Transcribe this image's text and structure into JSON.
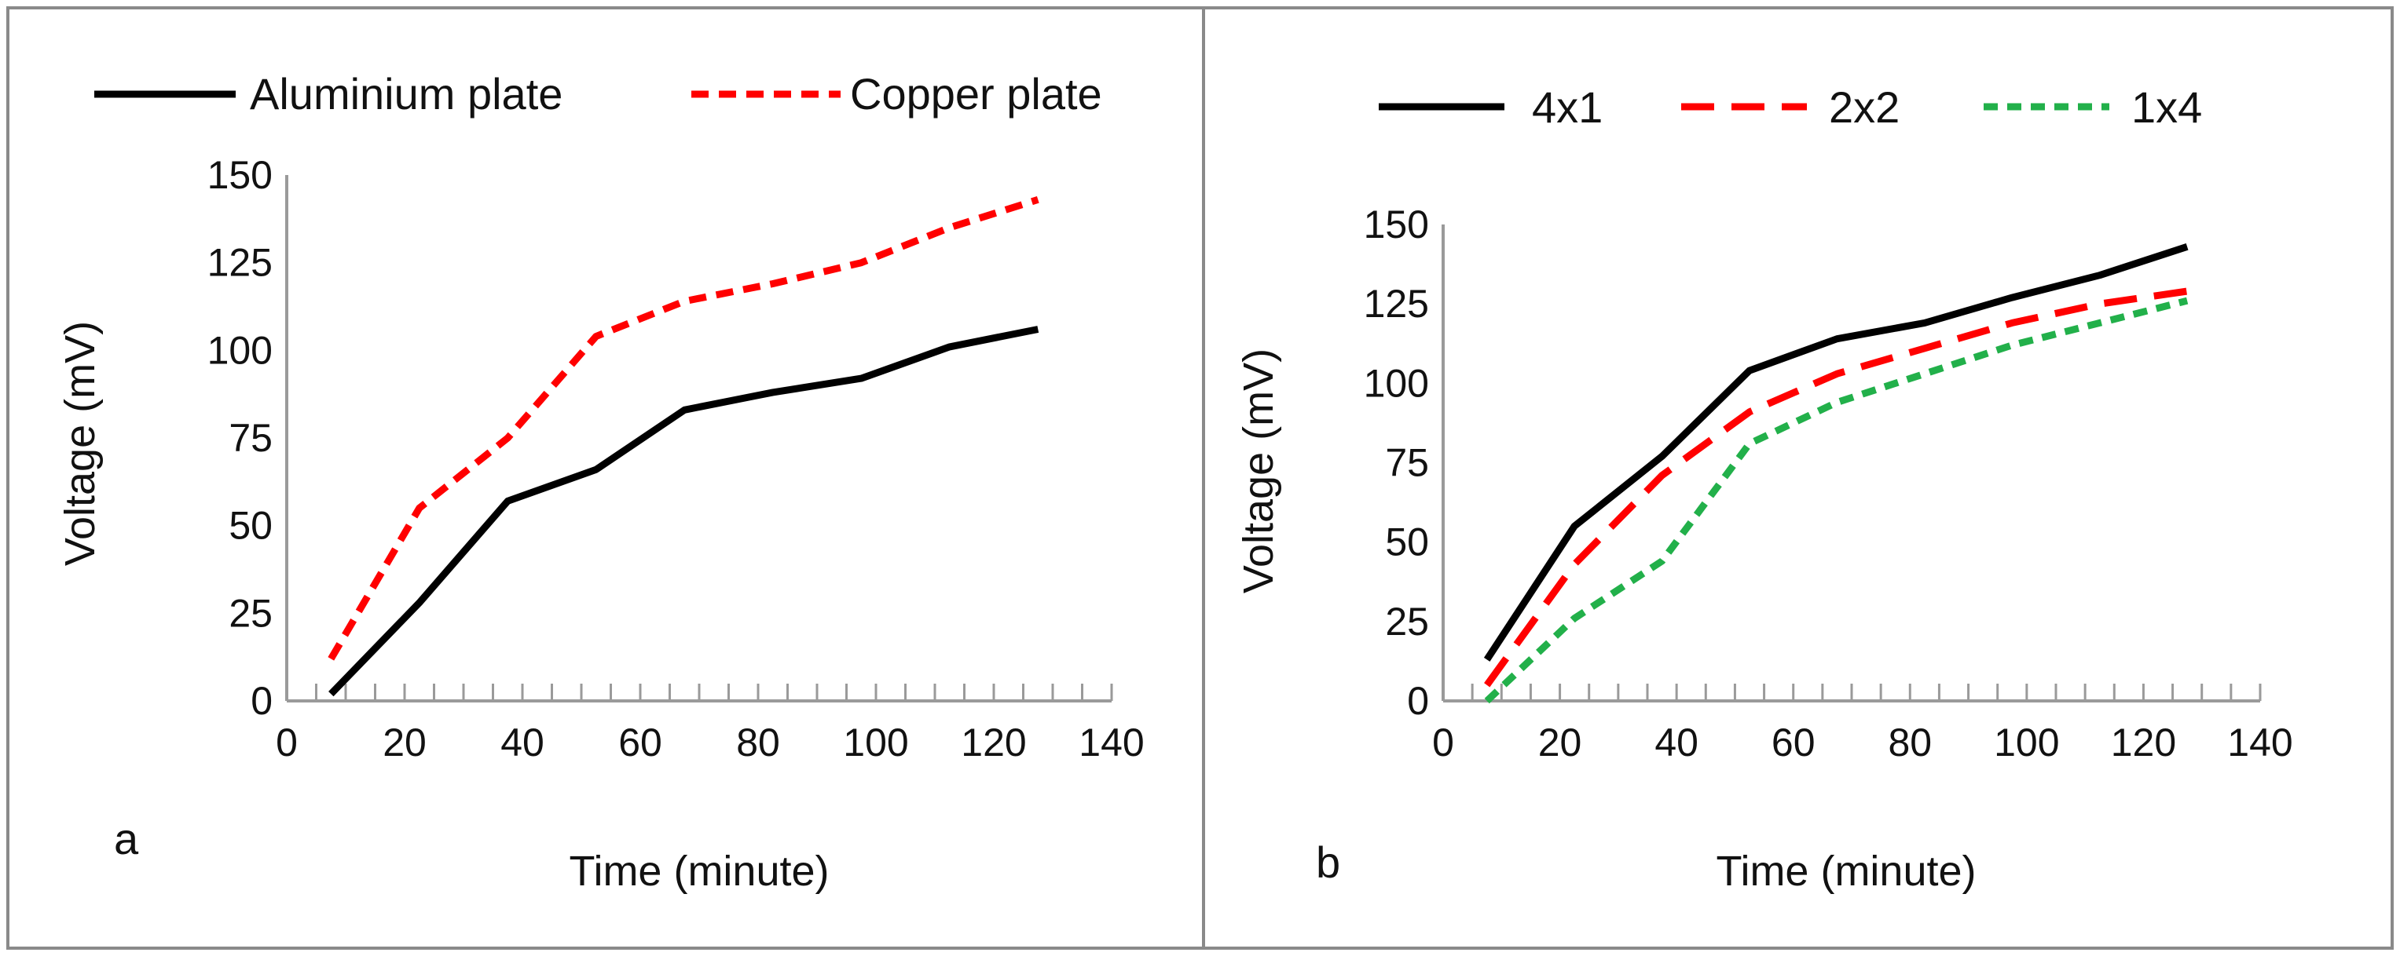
{
  "chart_data": [
    {
      "panel": "a",
      "type": "line",
      "xlabel": "Time (minute)",
      "ylabel": "Voltage (mV)",
      "xlim": [
        0,
        140
      ],
      "ylim": [
        0,
        150
      ],
      "xticks": [
        "0",
        "20",
        "40",
        "60",
        "80",
        "100",
        "120",
        "140"
      ],
      "yticks": [
        "0",
        "25",
        "50",
        "75",
        "100",
        "125",
        "150"
      ],
      "legend_position": "top",
      "x": [
        7.5,
        22.5,
        37.5,
        52.5,
        67.5,
        82.5,
        97.5,
        112.5,
        127.5
      ],
      "series": [
        {
          "name": "Aluminium plate",
          "color": "#000000",
          "dash": "solid",
          "values": [
            2,
            28,
            57,
            66,
            83,
            88,
            92,
            101,
            106
          ]
        },
        {
          "name": "Copper plate",
          "color": "#ff0000",
          "dash": "dashed",
          "values": [
            12,
            55,
            75,
            104,
            114,
            119,
            125,
            135,
            143
          ]
        }
      ]
    },
    {
      "panel": "b",
      "type": "line",
      "xlabel": "Time (minute)",
      "ylabel": "Voltage (mV)",
      "xlim": [
        0,
        140
      ],
      "ylim": [
        0,
        150
      ],
      "xticks": [
        "0",
        "20",
        "40",
        "60",
        "80",
        "100",
        "120",
        "140"
      ],
      "yticks": [
        "0",
        "25",
        "50",
        "75",
        "100",
        "125",
        "150"
      ],
      "legend_position": "top",
      "x": [
        7.5,
        22.5,
        37.5,
        52.5,
        67.5,
        82.5,
        97.5,
        112.5,
        127.5
      ],
      "series": [
        {
          "name": "4x1",
          "color": "#000000",
          "dash": "solid",
          "values": [
            13,
            55,
            77,
            104,
            114,
            119,
            127,
            134,
            143
          ]
        },
        {
          "name": "2x2",
          "color": "#ff0000",
          "dash": "longdash",
          "values": [
            5,
            43,
            71,
            91,
            103,
            111,
            119,
            125,
            129
          ]
        },
        {
          "name": "1x4",
          "color": "#22b04a",
          "dash": "shortdash",
          "values": [
            0,
            26,
            44,
            81,
            94,
            103,
            112,
            119,
            126
          ]
        }
      ]
    }
  ]
}
